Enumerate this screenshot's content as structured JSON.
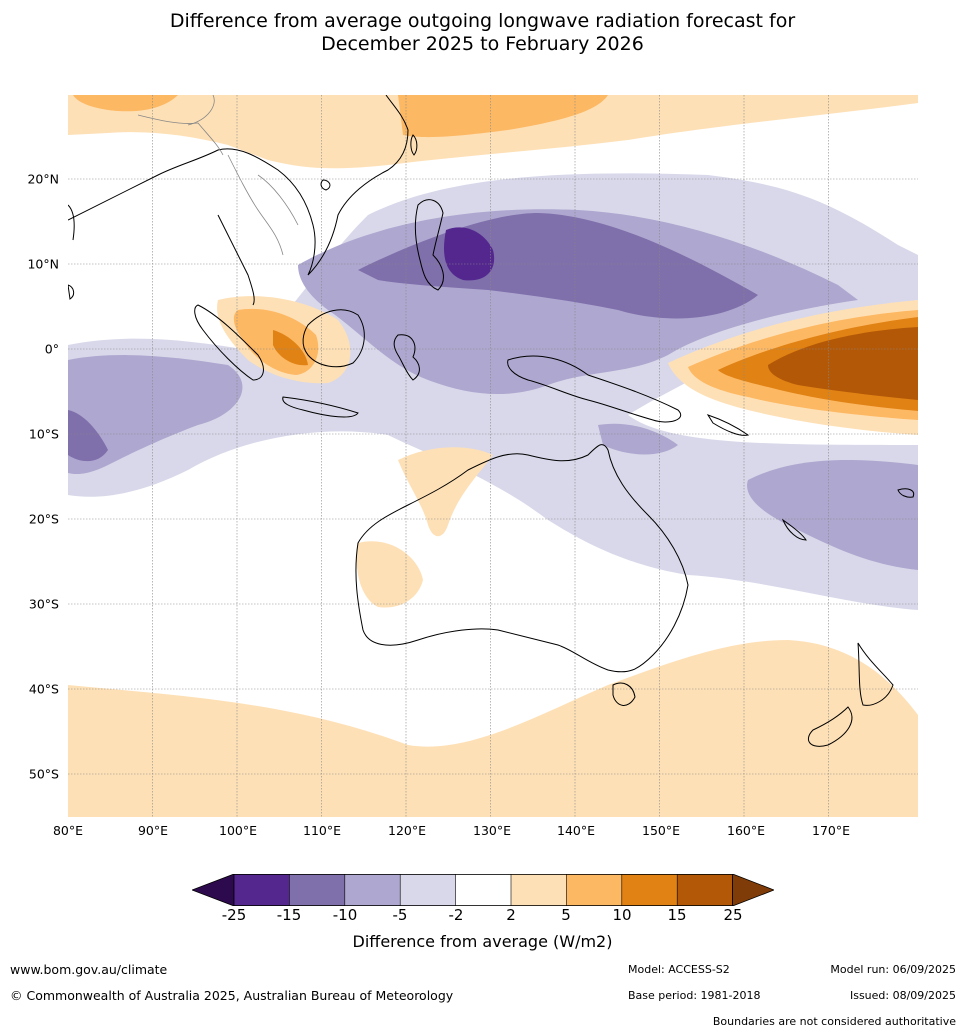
{
  "title_line1": "Difference from average outgoing longwave radiation forecast for",
  "title_line2": "December 2025 to February 2026",
  "lat_labels": [
    "20°N",
    "10°N",
    "0°",
    "10°S",
    "20°S",
    "30°S",
    "40°S",
    "50°S"
  ],
  "lon_labels": [
    "80°E",
    "90°E",
    "100°E",
    "110°E",
    "120°E",
    "130°E",
    "140°E",
    "150°E",
    "160°E",
    "170°E"
  ],
  "legend": {
    "ticks": [
      "-25",
      "-15",
      "-10",
      "-5",
      "-2",
      "2",
      "5",
      "10",
      "15",
      "25"
    ],
    "colors": [
      "#2d0a4e",
      "#54278f",
      "#7f6fab",
      "#aea7cf",
      "#d8d8ea",
      "#ffffff",
      "#fee0b6",
      "#fdb863",
      "#e08214",
      "#b35806",
      "#7f3b08"
    ],
    "label": "Difference from average (W/m2)"
  },
  "footer": {
    "website": "www.bom.gov.au/climate",
    "copyright": "© Commonwealth of Australia 2025, Australian Bureau of Meteorology",
    "model": "Model: ACCESS-S2",
    "base_period": "Base period: 1981-2018",
    "model_run": "Model run: 06/09/2025",
    "issued": "Issued: 08/09/2025",
    "disclaimer": "Boundaries are not considered authoritative"
  }
}
